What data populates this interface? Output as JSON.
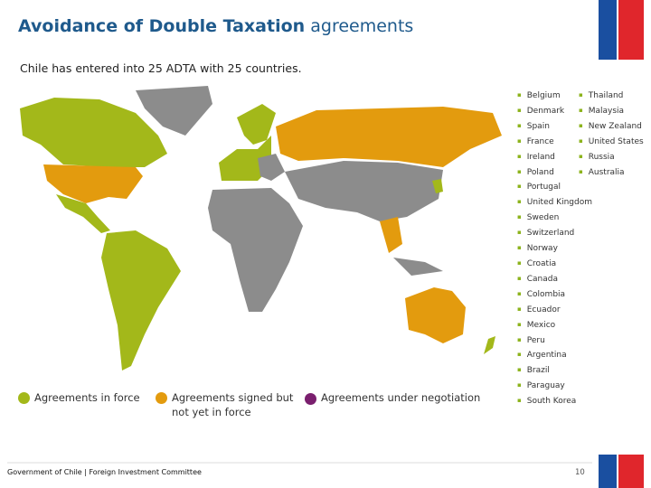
{
  "header": {
    "title_bold": "Avoidance of Double Taxation",
    "title_regular": "agreements"
  },
  "subtitle": "Chile has entered into 25 ADTA with 25 countries.",
  "countries": {
    "column_1": [
      "Belgium",
      "Denmark",
      "Spain",
      "France",
      "Ireland",
      "Poland",
      "Portugal",
      "United Kingdom",
      "Sweden",
      "Switzerland",
      "Norway",
      "Croatia",
      "Canada",
      "Colombia",
      "Ecuador",
      "Mexico",
      "Peru",
      "Argentina",
      "Brazil",
      "Paraguay",
      "South Korea"
    ],
    "column_2": [
      "Thailand",
      "Malaysia",
      "New Zealand",
      "United States",
      "Russia",
      "Australia"
    ]
  },
  "legend": [
    "Agreements in force",
    "Agreements signed but not yet in force",
    "Agreements under negotiation"
  ],
  "footer": {
    "source": "Government of Chile | Foreign Investment Committee",
    "page": "10"
  }
}
